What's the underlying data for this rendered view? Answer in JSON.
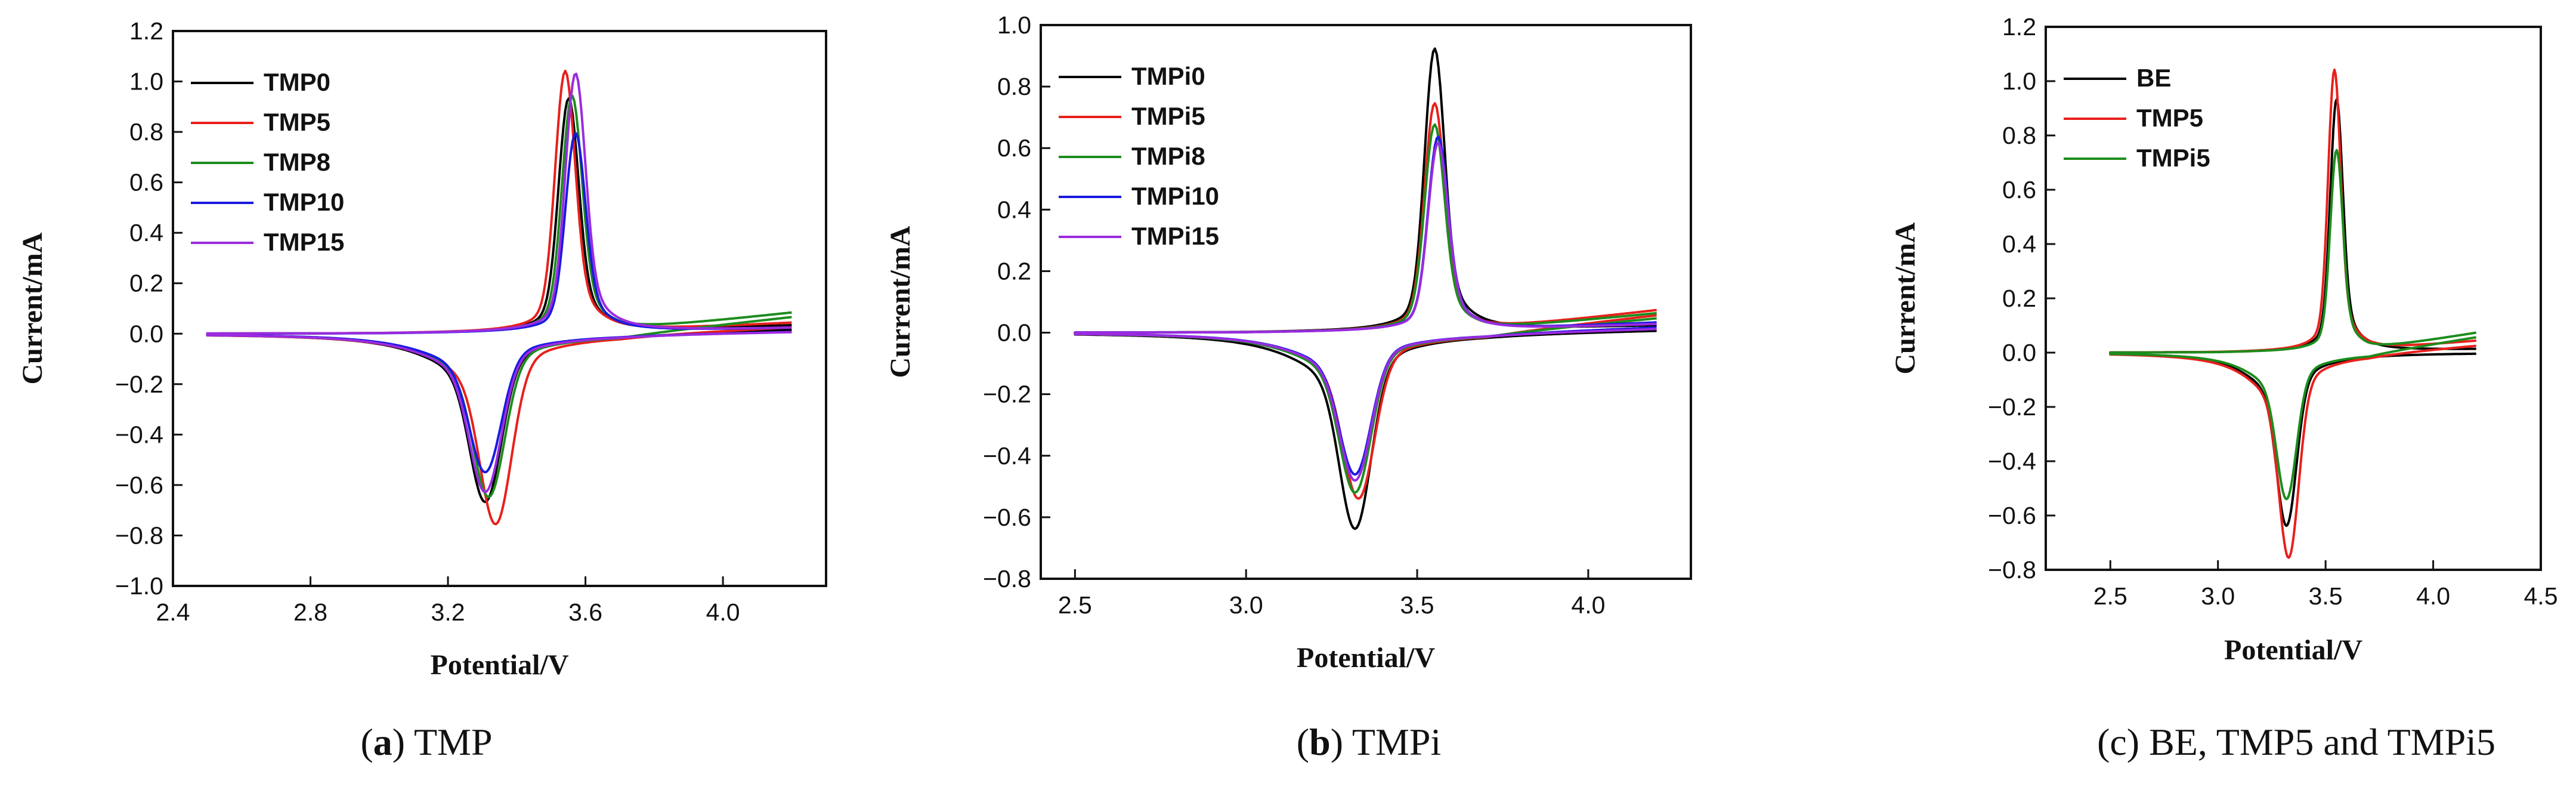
{
  "chart_data": [
    {
      "type": "line",
      "caption_letter": "a",
      "caption_rest": ") TMP",
      "xlabel": "Potential/V",
      "ylabel": "Current/mA",
      "xlim": [
        2.4,
        4.3
      ],
      "ylim": [
        -1.0,
        1.2
      ],
      "xticks": [
        2.4,
        2.8,
        3.2,
        3.6,
        4.0
      ],
      "xtick_labels": [
        "2.4",
        "2.8",
        "3.2",
        "3.6",
        "4.0"
      ],
      "yticks": [
        -1.0,
        -0.8,
        -0.6,
        -0.4,
        -0.2,
        0.0,
        0.2,
        0.4,
        0.6,
        0.8,
        1.0,
        1.2
      ],
      "ytick_labels": [
        "−1.0",
        "−0.8",
        "−0.6",
        "−0.4",
        "−0.2",
        "0.0",
        "0.2",
        "0.4",
        "0.6",
        "0.8",
        "1.0",
        "1.2"
      ],
      "legend_position": "top-left",
      "series": [
        {
          "name": "TMP0",
          "color": "#000000",
          "cathodic_peak_x": 3.31,
          "cathodic_peak_y": -0.68,
          "anodic_peak_x": 3.55,
          "anodic_peak_y": 0.94,
          "end_current": 0.02
        },
        {
          "name": "TMP5",
          "color": "#e8201c",
          "cathodic_peak_x": 3.34,
          "cathodic_peak_y": -0.77,
          "anodic_peak_x": 3.54,
          "anodic_peak_y": 1.05,
          "end_current": 0.03
        },
        {
          "name": "TMP8",
          "color": "#1c8c1c",
          "cathodic_peak_x": 3.32,
          "cathodic_peak_y": -0.66,
          "anodic_peak_x": 3.56,
          "anodic_peak_y": 0.95,
          "end_current": 0.07
        },
        {
          "name": "TMP10",
          "color": "#1a1ae0",
          "cathodic_peak_x": 3.31,
          "cathodic_peak_y": -0.56,
          "anodic_peak_x": 3.57,
          "anodic_peak_y": 0.8,
          "end_current": 0.01
        },
        {
          "name": "TMP15",
          "color": "#9a2be0",
          "cathodic_peak_x": 3.31,
          "cathodic_peak_y": -0.64,
          "anodic_peak_x": 3.57,
          "anodic_peak_y": 1.04,
          "end_current": 0.01
        }
      ]
    },
    {
      "type": "line",
      "caption_letter": "b",
      "caption_rest": ") TMPi",
      "xlabel": "Potential/V",
      "ylabel": "Current/mA",
      "xlim": [
        2.4,
        4.3
      ],
      "ylim": [
        -0.8,
        1.0
      ],
      "xticks": [
        2.5,
        3.0,
        3.5,
        4.0
      ],
      "xtick_labels": [
        "2.5",
        "3.0",
        "3.5",
        "4.0"
      ],
      "yticks": [
        -0.8,
        -0.6,
        -0.4,
        -0.2,
        0.0,
        0.2,
        0.4,
        0.6,
        0.8,
        1.0
      ],
      "ytick_labels": [
        "−0.8",
        "−0.6",
        "−0.4",
        "−0.2",
        "0.0",
        "0.2",
        "0.4",
        "0.6",
        "0.8",
        "1.0"
      ],
      "legend_position": "top-left",
      "series": [
        {
          "name": "TMPi0",
          "color": "#000000",
          "cathodic_peak_x": 3.32,
          "cathodic_peak_y": -0.65,
          "anodic_peak_x": 3.55,
          "anodic_peak_y": 0.93,
          "end_current": 0.01
        },
        {
          "name": "TMPi5",
          "color": "#e8201c",
          "cathodic_peak_x": 3.33,
          "cathodic_peak_y": -0.55,
          "anodic_peak_x": 3.55,
          "anodic_peak_y": 0.75,
          "end_current": 0.06
        },
        {
          "name": "TMPi8",
          "color": "#1c8c1c",
          "cathodic_peak_x": 3.32,
          "cathodic_peak_y": -0.53,
          "anodic_peak_x": 3.55,
          "anodic_peak_y": 0.68,
          "end_current": 0.05
        },
        {
          "name": "TMPi10",
          "color": "#1a1ae0",
          "cathodic_peak_x": 3.32,
          "cathodic_peak_y": -0.47,
          "anodic_peak_x": 3.56,
          "anodic_peak_y": 0.64,
          "end_current": 0.02
        },
        {
          "name": "TMPi15",
          "color": "#9a2be0",
          "cathodic_peak_x": 3.32,
          "cathodic_peak_y": -0.49,
          "anodic_peak_x": 3.56,
          "anodic_peak_y": 0.62,
          "end_current": 0.015
        }
      ]
    },
    {
      "type": "line",
      "caption_letter": "",
      "caption_rest": "(c) BE, TMP5 and TMPi5",
      "xlabel": "Potential/V",
      "ylabel": "Current/mA",
      "xlim": [
        2.2,
        4.5
      ],
      "ylim": [
        -0.8,
        1.2
      ],
      "xticks": [
        2.5,
        3.0,
        3.5,
        4.0,
        4.5
      ],
      "xtick_labels": [
        "2.5",
        "3.0",
        "3.5",
        "4.0",
        "4.5"
      ],
      "yticks": [
        -0.8,
        -0.6,
        -0.4,
        -0.2,
        0.0,
        0.2,
        0.4,
        0.6,
        0.8,
        1.0,
        1.2
      ],
      "ytick_labels": [
        "−0.8",
        "−0.6",
        "−0.4",
        "−0.2",
        "0.0",
        "0.2",
        "0.4",
        "0.6",
        "0.8",
        "1.0",
        "1.2"
      ],
      "legend_position": "top-left",
      "series": [
        {
          "name": "BE",
          "color": "#000000",
          "cathodic_peak_x": 3.32,
          "cathodic_peak_y": -0.65,
          "anodic_peak_x": 3.55,
          "anodic_peak_y": 0.94,
          "end_current": 0.0
        },
        {
          "name": "TMP5",
          "color": "#e8201c",
          "cathodic_peak_x": 3.33,
          "cathodic_peak_y": -0.77,
          "anodic_peak_x": 3.54,
          "anodic_peak_y": 1.05,
          "end_current": 0.03
        },
        {
          "name": "TMPi5",
          "color": "#1c8c1c",
          "cathodic_peak_x": 3.32,
          "cathodic_peak_y": -0.55,
          "anodic_peak_x": 3.55,
          "anodic_peak_y": 0.75,
          "end_current": 0.06
        }
      ]
    }
  ]
}
